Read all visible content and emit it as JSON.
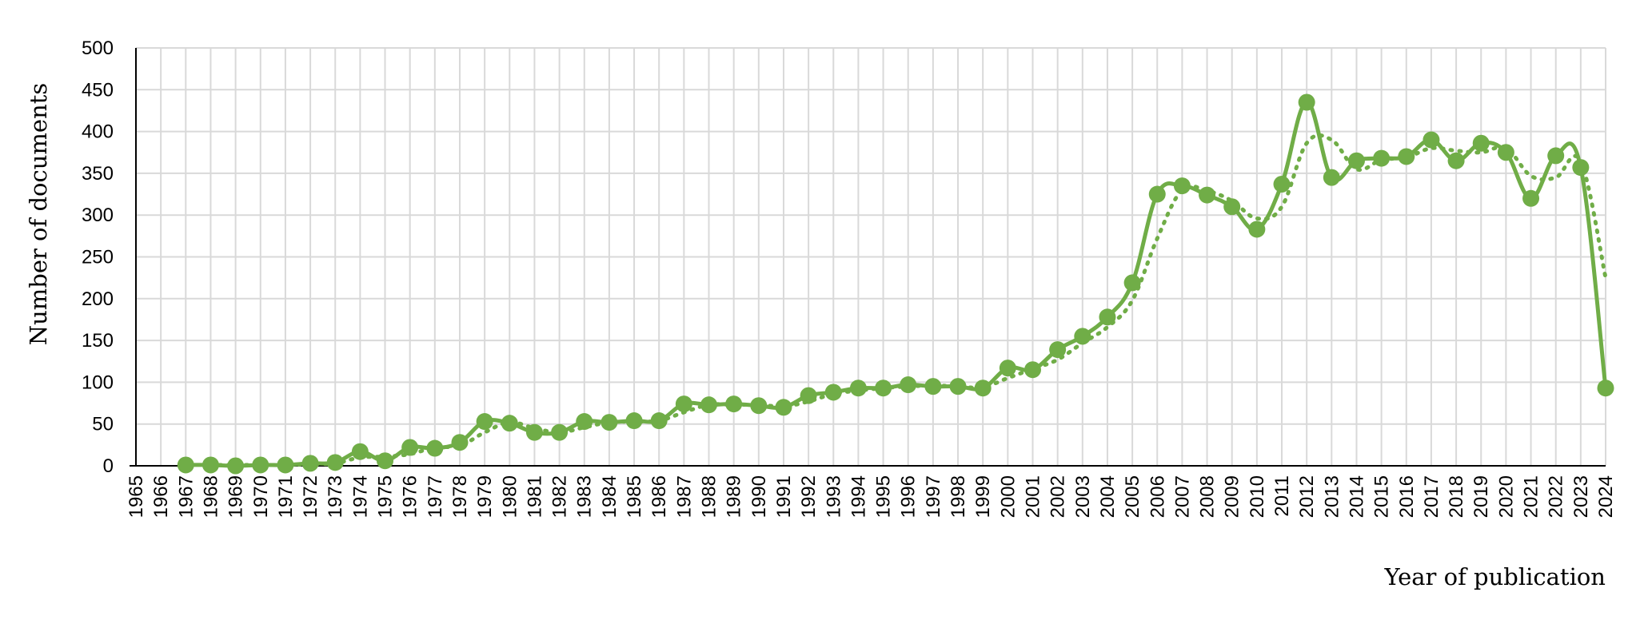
{
  "chart_data": {
    "type": "line",
    "xlabel": "Year of publication",
    "ylabel": "Number of documents",
    "ylim": [
      0,
      500
    ],
    "yticks": [
      0,
      50,
      100,
      150,
      200,
      250,
      300,
      350,
      400,
      450,
      500
    ],
    "x_categories": [
      "1965",
      "1966",
      "1967",
      "1968",
      "1969",
      "1970",
      "1971",
      "1972",
      "1973",
      "1974",
      "1975",
      "1976",
      "1977",
      "1978",
      "1979",
      "1980",
      "1981",
      "1982",
      "1983",
      "1984",
      "1985",
      "1986",
      "1987",
      "1988",
      "1989",
      "1990",
      "1991",
      "1992",
      "1993",
      "1994",
      "1995",
      "1996",
      "1997",
      "1998",
      "1999",
      "2000",
      "2001",
      "2002",
      "2003",
      "2004",
      "2005",
      "2006",
      "2007",
      "2008",
      "2009",
      "2010",
      "2011",
      "2012",
      "2013",
      "2014",
      "2015",
      "2016",
      "2017",
      "2018",
      "2019",
      "2020",
      "2021",
      "2022",
      "2023",
      "2024"
    ],
    "grid": true,
    "series": [
      {
        "kind": "solid-markers",
        "color": "#70ad47",
        "values": [
          null,
          null,
          1,
          1,
          0,
          1,
          1,
          3,
          4,
          17,
          6,
          22,
          21,
          28,
          53,
          51,
          40,
          40,
          53,
          52,
          54,
          54,
          74,
          73,
          74,
          72,
          70,
          84,
          88,
          93,
          93,
          97,
          95,
          95,
          93,
          117,
          115,
          139,
          155,
          178,
          219,
          325,
          335,
          324,
          310,
          283,
          337,
          435,
          345,
          365,
          368,
          370,
          390,
          365,
          386,
          375,
          320,
          371,
          357,
          93
        ]
      },
      {
        "kind": "dotted-trend",
        "color": "#70ad47",
        "values": [
          null,
          null,
          null,
          1,
          1,
          1,
          1,
          2,
          3,
          10,
          11,
          14,
          22,
          24,
          40,
          52,
          45,
          40,
          46,
          52,
          53,
          54,
          64,
          73,
          73,
          73,
          71,
          77,
          86,
          90,
          93,
          95,
          96,
          95,
          94,
          105,
          116,
          127,
          147,
          166,
          198,
          272,
          330,
          329,
          317,
          296,
          310,
          386,
          390,
          355,
          366,
          369,
          380,
          377,
          375,
          380,
          347,
          345,
          364,
          225
        ]
      }
    ]
  }
}
